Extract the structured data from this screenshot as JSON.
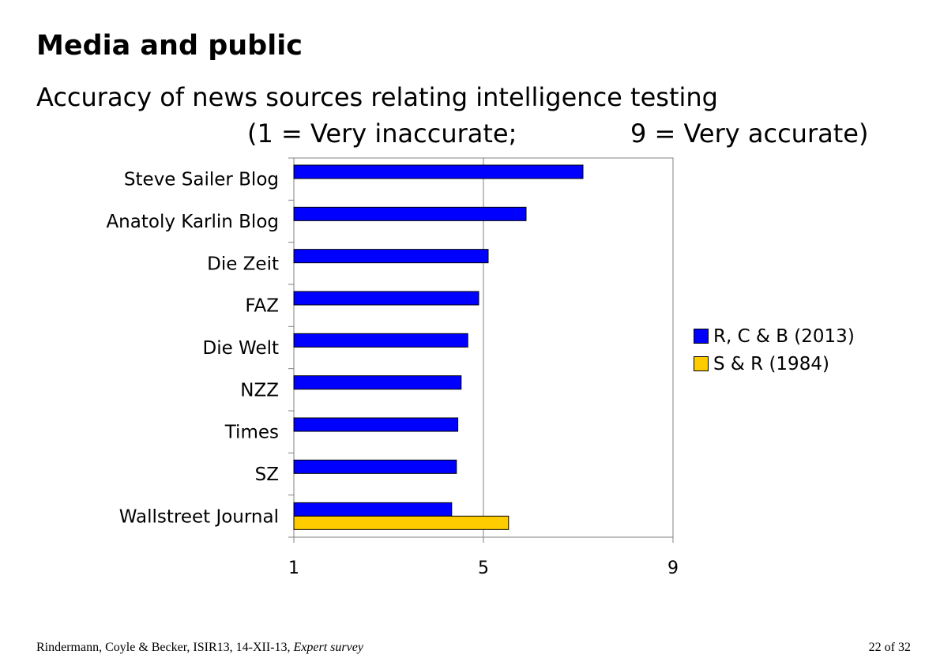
{
  "slide": {
    "title": "Media and public",
    "subtitle": "Accuracy of news sources relating intelligence testing",
    "scale_low": "(1 = Very inaccurate;",
    "scale_high": "9 = Very accurate)"
  },
  "footer": {
    "citation": "Rindermann, Coyle & Becker, ISIR13, 14-XII-13, ",
    "citation_italic": "Expert survey",
    "page": "22 of 32"
  },
  "chart_data": {
    "type": "bar",
    "orientation": "horizontal",
    "categories": [
      "Steve Sailer Blog",
      "Anatoly Karlin Blog",
      "Die Zeit",
      "FAZ",
      "Die Welt",
      "NZZ",
      "Times",
      "SZ",
      "Wallstreet Journal"
    ],
    "series": [
      {
        "name": "R, C & B (2013)",
        "color": "#0000ff",
        "values": [
          7.1,
          5.9,
          5.1,
          4.9,
          4.67,
          4.53,
          4.46,
          4.43,
          4.33
        ]
      },
      {
        "name": "S & R (1984)",
        "color": "#ffcc00",
        "values": [
          null,
          null,
          null,
          null,
          null,
          null,
          null,
          null,
          5.53
        ]
      }
    ],
    "xlim": [
      1,
      9
    ],
    "xticks": [
      1,
      5,
      9
    ],
    "gridlines": [
      5
    ],
    "legend_position": "right"
  }
}
